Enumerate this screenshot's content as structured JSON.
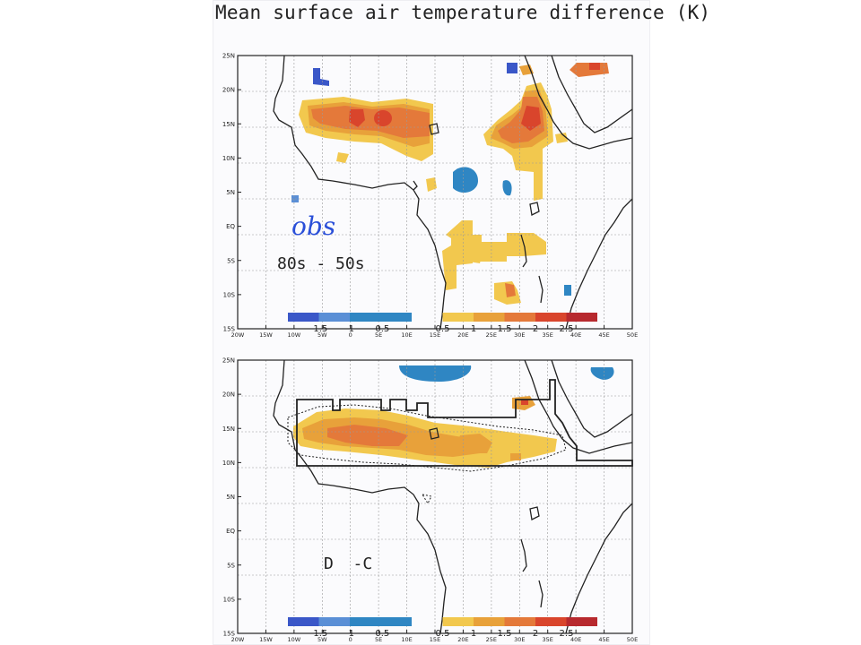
{
  "title": "Mean surface air temperature difference (K)",
  "colors": {
    "n2": "#3a57c8",
    "n1": "#5a8fd6",
    "n0": "#2f86c3",
    "p1": "#f2c84e",
    "p2": "#e8a13a",
    "p3": "#e4793a",
    "p4": "#d9452c",
    "p5": "#b7292e",
    "coast": "#222222",
    "grid": "#9a9a9a",
    "handwriting": "#2a4fd8"
  },
  "map": {
    "lat_ticks": [
      "25N",
      "20N",
      "15N",
      "10N",
      "5N",
      "EQ",
      "5S",
      "10S",
      "15S"
    ],
    "lon_ticks": [
      "20W",
      "15W",
      "10W",
      "5W",
      "0",
      "5E",
      "10E",
      "15E",
      "20E",
      "25E",
      "30E",
      "35E",
      "40E",
      "45E",
      "50E"
    ],
    "colorbar_ticks": [
      "-1.5",
      "-1",
      "-0.5",
      "0.5",
      "1",
      "1.5",
      "2",
      "2.5"
    ]
  },
  "panels": [
    {
      "label": "80s - 50s",
      "handwritten": "obs"
    },
    {
      "label": "D  -C"
    }
  ]
}
